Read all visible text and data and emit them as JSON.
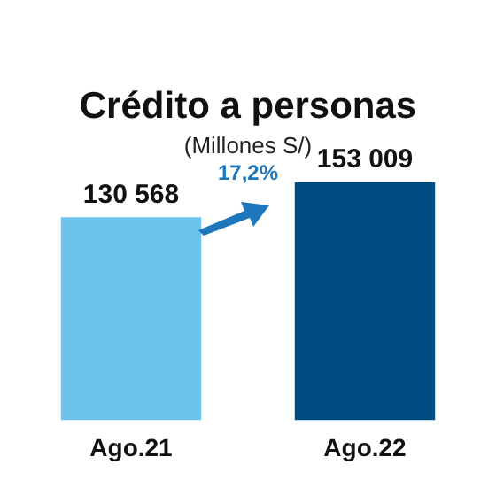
{
  "chart_data": {
    "type": "bar",
    "title": "Crédito a personas",
    "subtitle": "(Millones S/)",
    "categories": [
      "Ago.21",
      "Ago.22"
    ],
    "values": [
      130568,
      153009
    ],
    "colors": [
      "#6cc4ee",
      "#004b82"
    ],
    "value_labels": [
      "130 568",
      "153 009"
    ],
    "annotations": [
      "17,2%"
    ],
    "grid": false,
    "legend": false
  }
}
